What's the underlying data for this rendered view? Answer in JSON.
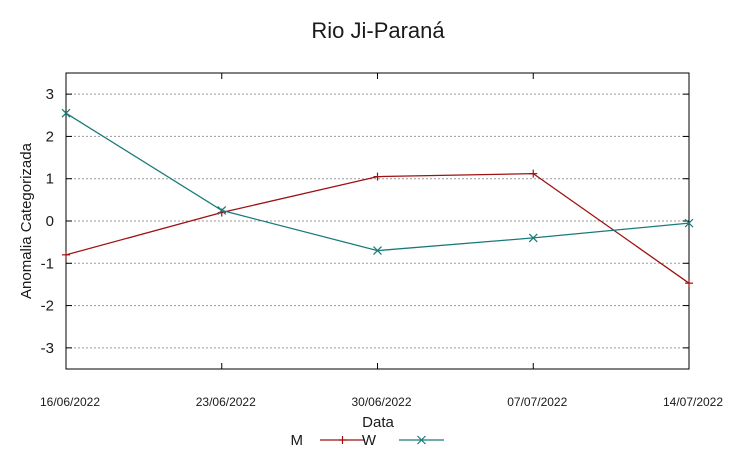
{
  "chart_data": {
    "type": "line",
    "title": "Rio Ji-Paraná",
    "xlabel": "Data",
    "ylabel": "Anomalia Categorizada",
    "categories": [
      "16/06/2022",
      "23/06/2022",
      "30/06/2022",
      "07/07/2022",
      "14/07/2022"
    ],
    "yticks": [
      "-3",
      "-2",
      "-1",
      "0",
      "1",
      "2",
      "3"
    ],
    "ylim": [
      -3.5,
      3.5
    ],
    "grid": true,
    "legend_position": "bottom",
    "series": [
      {
        "name": "M",
        "color": "#a01010",
        "marker": "plus",
        "values": [
          -0.8,
          0.2,
          1.05,
          1.12,
          -1.47
        ]
      },
      {
        "name": "W",
        "color": "#1a7a7a",
        "marker": "cross",
        "values": [
          2.55,
          0.25,
          -0.7,
          -0.4,
          -0.05
        ]
      }
    ]
  }
}
